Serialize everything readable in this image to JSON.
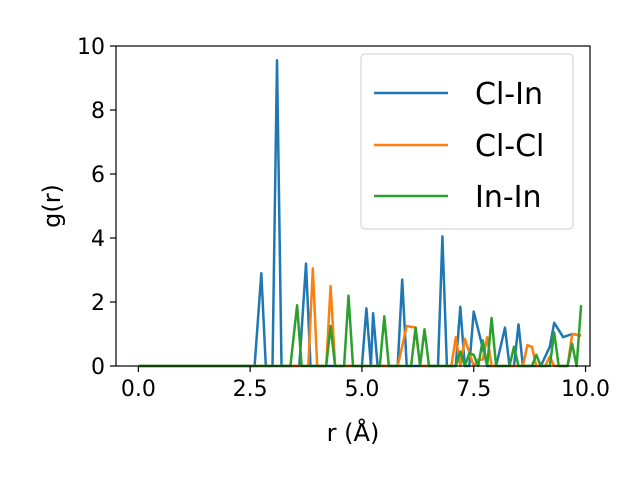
{
  "chart_data": {
    "type": "line",
    "title": "",
    "xlabel": "r (Å)",
    "ylabel": "g(r)",
    "xlim": [
      -0.5,
      10.1
    ],
    "ylim": [
      0,
      10
    ],
    "xticks": [
      "0.0",
      "2.5",
      "5.0",
      "7.5",
      "10.0"
    ],
    "xtick_values": [
      0,
      2.5,
      5,
      7.5,
      10
    ],
    "yticks": [
      "0",
      "2",
      "4",
      "6",
      "8",
      "10"
    ],
    "ytick_values": [
      0,
      2,
      4,
      6,
      8,
      10
    ],
    "grid": false,
    "legend_position": "upper right",
    "series": [
      {
        "name": "Cl-In",
        "color": "#1f77b4",
        "x": [
          0,
          2.6,
          2.75,
          2.85,
          3.0,
          3.1,
          3.2,
          3.6,
          3.75,
          3.85,
          3.95,
          5.0,
          5.1,
          5.2,
          5.25,
          5.35,
          5.8,
          5.9,
          6.0,
          6.2,
          6.7,
          6.8,
          6.9,
          7.1,
          7.2,
          7.3,
          7.4,
          7.5,
          7.8,
          8.0,
          8.2,
          8.3,
          8.4,
          8.5,
          8.6,
          9.0,
          9.2,
          9.3,
          9.5,
          9.7,
          9.9
        ],
        "y": [
          0,
          0,
          2.9,
          0,
          0,
          9.55,
          0,
          0,
          3.2,
          0,
          0,
          0,
          1.8,
          0,
          1.65,
          0,
          0,
          2.7,
          0,
          0,
          0,
          4.05,
          0,
          0,
          1.85,
          0,
          0,
          1.7,
          0,
          0,
          1.2,
          0,
          0,
          1.3,
          0,
          0,
          0.6,
          1.35,
          0.9,
          1.0,
          0.95
        ]
      },
      {
        "name": "Cl-Cl",
        "color": "#ff7f0e",
        "x": [
          0,
          3.8,
          3.9,
          4.0,
          4.2,
          4.3,
          4.4,
          5.8,
          6.0,
          6.2,
          6.3,
          7.0,
          7.1,
          7.2,
          7.3,
          7.5,
          7.6,
          7.7,
          7.8,
          7.9,
          8.6,
          8.7,
          8.8,
          8.9,
          9.1,
          9.2,
          9.3,
          9.6,
          9.7,
          9.9
        ],
        "y": [
          0,
          0,
          3.05,
          0,
          0,
          2.5,
          0,
          0,
          1.25,
          1.2,
          0,
          0,
          0.9,
          0,
          0.85,
          0,
          0.2,
          0.2,
          0.9,
          0,
          0,
          0.65,
          0.6,
          0,
          0,
          0.3,
          0,
          0,
          1.0,
          0.95
        ]
      },
      {
        "name": "In-In",
        "color": "#2ca02c",
        "x": [
          0,
          3.4,
          3.55,
          3.65,
          4.2,
          4.3,
          4.4,
          4.6,
          4.7,
          4.8,
          5.4,
          5.5,
          5.6,
          6.1,
          6.2,
          6.3,
          6.4,
          6.5,
          7.1,
          7.2,
          7.3,
          7.4,
          7.5,
          7.6,
          7.7,
          7.8,
          7.9,
          8.0,
          8.3,
          8.4,
          8.5,
          8.8,
          8.9,
          9.0,
          9.2,
          9.3,
          9.4,
          9.6,
          9.7,
          9.8,
          9.9
        ],
        "y": [
          0,
          0,
          1.9,
          0,
          0,
          1.25,
          0,
          0,
          2.2,
          0,
          0,
          1.55,
          0,
          0,
          1.2,
          0,
          1.15,
          0,
          0,
          0.45,
          0,
          0.4,
          0.35,
          0,
          0.8,
          0,
          1.5,
          0,
          0,
          0.6,
          0,
          0,
          0.35,
          0,
          0,
          1.05,
          0,
          0,
          0.7,
          0,
          1.9
        ]
      }
    ]
  }
}
